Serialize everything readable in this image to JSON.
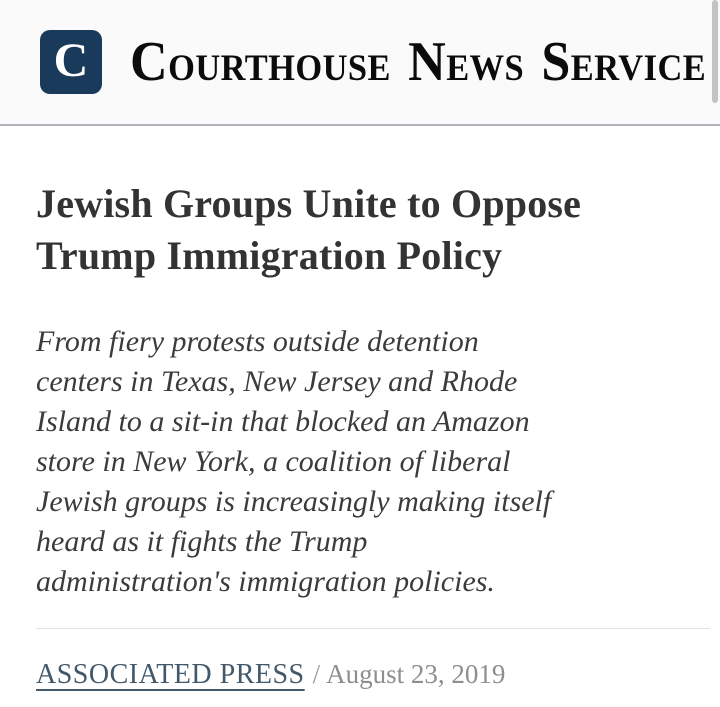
{
  "colors": {
    "brand_navy": "#1a3a5c",
    "header_bg": "#fafafa",
    "header_border": "#b2b2b9",
    "headline_text": "#333333",
    "deck_text": "#3b3b3b",
    "author_link": "#42596b",
    "date_text": "#8e8e8e",
    "divider": "#e4e4e4",
    "scrollbar_thumb": "#c3c3c3"
  },
  "header": {
    "logo_letter": "C",
    "brand_parts": [
      {
        "cap": "C",
        "rest": "OURTHOUSE"
      },
      {
        "cap": "N",
        "rest": "EWS"
      },
      {
        "cap": "S",
        "rest": "ERVICE"
      }
    ]
  },
  "article": {
    "title_lines": [
      "Jewish Groups Unite to Oppose",
      "Trump Immigration Policy"
    ],
    "deck_lines": [
      "From fiery protests outside detention",
      "centers in Texas, New Jersey and Rhode",
      "Island to a sit-in that blocked an Amazon",
      "store in New York, a coalition of liberal",
      "Jewish groups is increasingly making itself",
      "heard as it fights the Trump",
      "administration's immigration policies."
    ],
    "byline": {
      "author": "ASSOCIATED PRESS",
      "separator": "/",
      "date": "August 23, 2019"
    }
  }
}
